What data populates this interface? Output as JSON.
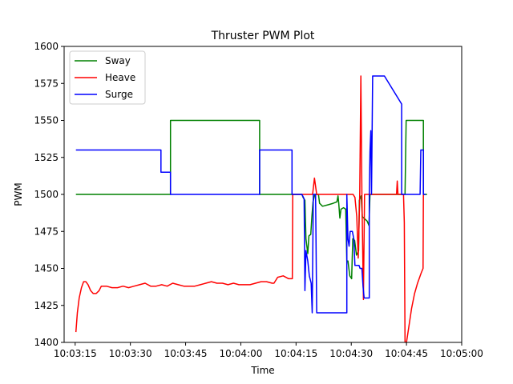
{
  "chart_data": {
    "type": "line",
    "title": "Thruster PWM Plot",
    "xlabel": "Time",
    "ylabel": "PWM",
    "xlim_seconds": [
      36192,
      36300
    ],
    "ylim": [
      1400,
      1600
    ],
    "x_ticks": [
      {
        "t": 36195,
        "label": "10:03:15"
      },
      {
        "t": 36210,
        "label": "10:03:30"
      },
      {
        "t": 36225,
        "label": "10:03:45"
      },
      {
        "t": 36240,
        "label": "10:04:00"
      },
      {
        "t": 36255,
        "label": "10:04:15"
      },
      {
        "t": 36270,
        "label": "10:04:30"
      },
      {
        "t": 36285,
        "label": "10:04:45"
      },
      {
        "t": 36300,
        "label": "10:05:00"
      }
    ],
    "y_ticks": [
      1400,
      1425,
      1450,
      1475,
      1500,
      1525,
      1550,
      1575,
      1600
    ],
    "legend": {
      "position": "top-left"
    },
    "grid": false,
    "series": [
      {
        "name": "Sway",
        "color": "#008000",
        "points": [
          [
            36195.2,
            1500
          ],
          [
            36220.9,
            1500
          ],
          [
            36220.9,
            1550
          ],
          [
            36245.1,
            1550
          ],
          [
            36245.1,
            1500
          ],
          [
            36256.6,
            1500
          ],
          [
            36256.9,
            1498
          ],
          [
            36257.4,
            1496
          ],
          [
            36257.7,
            1470
          ],
          [
            36258.2,
            1460
          ],
          [
            36258.5,
            1472
          ],
          [
            36259.0,
            1473
          ],
          [
            36259.3,
            1485
          ],
          [
            36259.6,
            1495
          ],
          [
            36260.1,
            1500
          ],
          [
            36261.1,
            1500
          ],
          [
            36261.4,
            1494
          ],
          [
            36262.2,
            1492
          ],
          [
            36263.8,
            1493
          ],
          [
            36265.1,
            1494
          ],
          [
            36266.1,
            1495
          ],
          [
            36266.4,
            1499
          ],
          [
            36266.6,
            1494
          ],
          [
            36266.9,
            1484
          ],
          [
            36267.2,
            1490
          ],
          [
            36267.9,
            1491
          ],
          [
            36268.5,
            1490
          ],
          [
            36268.8,
            1455
          ],
          [
            36269.1,
            1455
          ],
          [
            36269.6,
            1445
          ],
          [
            36270.1,
            1443
          ],
          [
            36270.4,
            1470
          ],
          [
            36270.9,
            1469
          ],
          [
            36271.4,
            1459
          ],
          [
            36272.0,
            1462
          ],
          [
            36272.2,
            1496
          ],
          [
            36272.7,
            1499
          ],
          [
            36273.0,
            1485
          ],
          [
            36274.3,
            1482
          ],
          [
            36274.8,
            1479
          ],
          [
            36275.1,
            1500
          ],
          [
            36284.6,
            1500
          ],
          [
            36284.9,
            1550
          ],
          [
            36289.6,
            1550
          ],
          [
            36289.6,
            1500
          ],
          [
            36290.6,
            1500
          ]
        ]
      },
      {
        "name": "Heave",
        "color": "#ff0000",
        "points": [
          [
            36195.2,
            1407
          ],
          [
            36195.6,
            1420
          ],
          [
            36196.1,
            1430
          ],
          [
            36196.7,
            1437
          ],
          [
            36197.3,
            1441
          ],
          [
            36197.9,
            1441
          ],
          [
            36198.5,
            1439
          ],
          [
            36199.2,
            1435
          ],
          [
            36199.9,
            1433
          ],
          [
            36200.7,
            1433
          ],
          [
            36201.5,
            1435
          ],
          [
            36202.1,
            1438
          ],
          [
            36203.5,
            1438
          ],
          [
            36205.0,
            1437
          ],
          [
            36206.5,
            1437
          ],
          [
            36208.0,
            1438
          ],
          [
            36209.5,
            1437
          ],
          [
            36211.0,
            1438
          ],
          [
            36212.5,
            1439
          ],
          [
            36214.0,
            1440
          ],
          [
            36215.5,
            1438
          ],
          [
            36217.0,
            1438
          ],
          [
            36218.5,
            1439
          ],
          [
            36220.0,
            1438
          ],
          [
            36221.5,
            1440
          ],
          [
            36223.0,
            1439
          ],
          [
            36224.5,
            1438
          ],
          [
            36226.0,
            1438
          ],
          [
            36227.5,
            1438
          ],
          [
            36229.0,
            1439
          ],
          [
            36230.5,
            1440
          ],
          [
            36232.0,
            1441
          ],
          [
            36233.5,
            1440
          ],
          [
            36235.0,
            1440
          ],
          [
            36236.5,
            1439
          ],
          [
            36238.0,
            1440
          ],
          [
            36239.5,
            1439
          ],
          [
            36241.0,
            1439
          ],
          [
            36242.5,
            1439
          ],
          [
            36244.0,
            1440
          ],
          [
            36245.5,
            1441
          ],
          [
            36247.0,
            1441
          ],
          [
            36248.5,
            1440
          ],
          [
            36249.0,
            1440
          ],
          [
            36250.0,
            1444
          ],
          [
            36251.5,
            1445
          ],
          [
            36253.0,
            1443
          ],
          [
            36254.0,
            1443
          ],
          [
            36254.1,
            1500
          ],
          [
            36259.5,
            1500
          ],
          [
            36260.0,
            1511
          ],
          [
            36260.6,
            1500
          ],
          [
            36270.5,
            1500
          ],
          [
            36271.0,
            1498
          ],
          [
            36271.5,
            1485
          ],
          [
            36271.9,
            1457
          ],
          [
            36272.3,
            1500
          ],
          [
            36272.6,
            1580
          ],
          [
            36272.9,
            1500
          ],
          [
            36273.3,
            1429
          ],
          [
            36273.6,
            1500
          ],
          [
            36282.3,
            1500
          ],
          [
            36282.5,
            1509
          ],
          [
            36282.7,
            1500
          ],
          [
            36284.2,
            1500
          ],
          [
            36284.4,
            1481
          ],
          [
            36284.6,
            1400
          ],
          [
            36285.0,
            1400
          ],
          [
            36285.6,
            1410
          ],
          [
            36286.4,
            1423
          ],
          [
            36287.2,
            1433
          ],
          [
            36288.0,
            1440
          ],
          [
            36289.0,
            1447
          ],
          [
            36289.5,
            1450
          ],
          [
            36289.6,
            1500
          ]
        ]
      },
      {
        "name": "Surge",
        "color": "#0000ff",
        "points": [
          [
            36195.2,
            1530
          ],
          [
            36218.3,
            1530
          ],
          [
            36218.3,
            1515
          ],
          [
            36220.9,
            1515
          ],
          [
            36220.9,
            1500
          ],
          [
            36245.1,
            1500
          ],
          [
            36245.1,
            1530
          ],
          [
            36253.9,
            1530
          ],
          [
            36253.9,
            1500
          ],
          [
            36256.6,
            1500
          ],
          [
            36257.2,
            1497
          ],
          [
            36257.4,
            1435
          ],
          [
            36257.7,
            1462
          ],
          [
            36258.2,
            1455
          ],
          [
            36258.6,
            1445
          ],
          [
            36259.1,
            1440
          ],
          [
            36259.4,
            1420
          ],
          [
            36259.7,
            1500
          ],
          [
            36260.3,
            1500
          ],
          [
            36260.6,
            1420
          ],
          [
            36268.8,
            1420
          ],
          [
            36268.8,
            1500
          ],
          [
            36269.1,
            1470
          ],
          [
            36269.4,
            1465
          ],
          [
            36269.7,
            1475
          ],
          [
            36270.3,
            1475
          ],
          [
            36270.7,
            1470
          ],
          [
            36271.0,
            1452
          ],
          [
            36272.1,
            1452
          ],
          [
            36272.4,
            1450
          ],
          [
            36272.9,
            1450
          ],
          [
            36273.2,
            1438
          ],
          [
            36273.5,
            1430
          ],
          [
            36274.9,
            1430
          ],
          [
            36274.9,
            1500
          ],
          [
            36275.1,
            1529
          ],
          [
            36275.3,
            1543
          ],
          [
            36275.5,
            1500
          ],
          [
            36275.8,
            1580
          ],
          [
            36279.0,
            1580
          ],
          [
            36283.7,
            1561
          ],
          [
            36283.7,
            1500
          ],
          [
            36288.7,
            1500
          ],
          [
            36288.9,
            1530
          ],
          [
            36289.6,
            1530
          ],
          [
            36289.6,
            1500
          ],
          [
            36290.2,
            1500
          ]
        ]
      }
    ]
  }
}
